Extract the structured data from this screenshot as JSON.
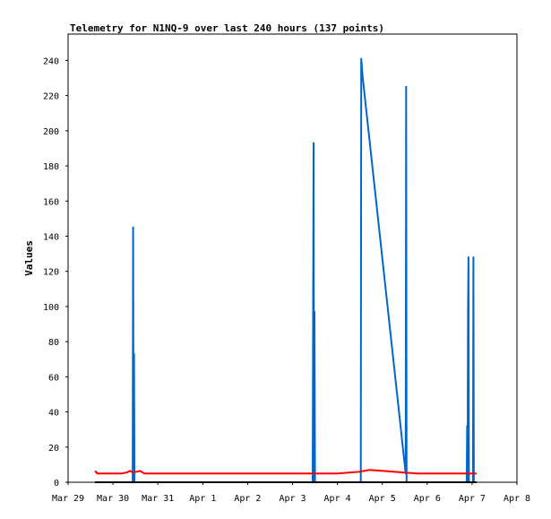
{
  "chart_data": {
    "type": "line",
    "title": "Telemetry for N1NQ-9 over last 240 hours (137 points)",
    "ylabel": "Values",
    "xlabel": "",
    "ylim": [
      0,
      255
    ],
    "xlim": [
      "Mar 29",
      "Apr 8"
    ],
    "yticks": [
      0,
      20,
      40,
      60,
      80,
      100,
      120,
      140,
      160,
      180,
      200,
      220,
      240
    ],
    "xticks": [
      "Mar 29",
      "Mar 30",
      "Mar 31",
      "Apr 1",
      "Apr 2",
      "Apr 3",
      "Apr 4",
      "Apr 5",
      "Apr 6",
      "Apr 7",
      "Apr 8"
    ],
    "grid": false,
    "series": [
      {
        "color": "#0066cc",
        "points": [
          [
            0.6,
            0
          ],
          [
            1.44,
            0
          ],
          [
            1.45,
            145
          ],
          [
            1.46,
            0
          ],
          [
            1.47,
            73
          ],
          [
            1.48,
            0
          ],
          [
            5.45,
            0
          ],
          [
            5.46,
            97
          ],
          [
            5.47,
            193
          ],
          [
            5.48,
            0
          ],
          [
            5.49,
            97
          ],
          [
            5.5,
            0
          ],
          [
            6.52,
            0
          ],
          [
            6.53,
            241
          ],
          [
            6.56,
            231
          ],
          [
            7.52,
            5
          ],
          [
            7.53,
            225
          ],
          [
            7.54,
            0
          ],
          [
            8.88,
            0
          ],
          [
            8.89,
            32
          ],
          [
            8.9,
            0
          ],
          [
            8.91,
            97
          ],
          [
            8.92,
            128
          ],
          [
            8.93,
            0
          ],
          [
            9.02,
            0
          ],
          [
            9.03,
            128
          ],
          [
            9.04,
            0
          ],
          [
            9.1,
            0
          ]
        ]
      },
      {
        "color": "#ff0000",
        "points": [
          [
            0.6,
            6.5
          ],
          [
            0.65,
            5
          ],
          [
            1.2,
            5
          ],
          [
            1.3,
            5.5
          ],
          [
            1.38,
            6.5
          ],
          [
            1.45,
            5.5
          ],
          [
            1.6,
            6.5
          ],
          [
            1.7,
            5
          ],
          [
            6.0,
            5
          ],
          [
            6.5,
            6
          ],
          [
            6.7,
            7
          ],
          [
            7.0,
            6.5
          ],
          [
            7.5,
            5.5
          ],
          [
            7.8,
            5
          ],
          [
            9.1,
            5
          ]
        ]
      },
      {
        "color": "#000000",
        "points": [
          [
            0.6,
            0
          ],
          [
            9.1,
            0
          ]
        ]
      }
    ]
  }
}
